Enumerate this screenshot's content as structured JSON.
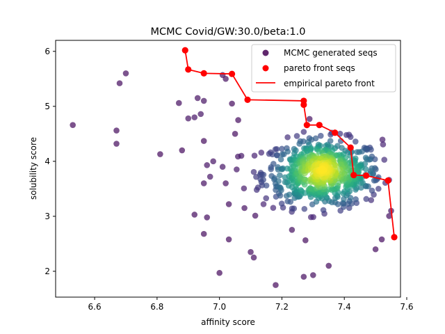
{
  "chart_data": {
    "type": "scatter",
    "title": "MCMC Covid/GW:30.0/beta:1.0",
    "xlabel": "affinity score",
    "ylabel": "solubility score",
    "xlim": [
      6.475,
      7.58
    ],
    "ylim": [
      1.53,
      6.2
    ],
    "xticks": [
      "6.6",
      "6.8",
      "7.0",
      "7.2",
      "7.4",
      "7.6"
    ],
    "yticks": [
      "2",
      "3",
      "4",
      "5",
      "6"
    ],
    "grid": false,
    "legend_position": "top-right",
    "legend": [
      "MCMC generated seqs",
      "pareto front seqs",
      "empirical pareto front"
    ],
    "colors": {
      "pareto": "#ff0000",
      "viridis_low": "#440154",
      "viridis_mid": "#21918c",
      "viridis_high": "#fde725",
      "axis": "#000000"
    },
    "outlier_points": [
      [
        6.53,
        4.66
      ],
      [
        6.67,
        4.56
      ],
      [
        6.67,
        4.32
      ],
      [
        6.68,
        5.42
      ],
      [
        6.7,
        5.6
      ],
      [
        6.81,
        4.13
      ],
      [
        6.87,
        5.06
      ],
      [
        6.88,
        4.2
      ],
      [
        6.9,
        4.78
      ],
      [
        6.92,
        4.8
      ],
      [
        6.93,
        5.15
      ],
      [
        6.94,
        4.86
      ],
      [
        6.95,
        5.1
      ],
      [
        6.95,
        4.37
      ],
      [
        6.96,
        3.93
      ],
      [
        6.95,
        3.6
      ],
      [
        6.97,
        3.72
      ],
      [
        6.98,
        4.0
      ],
      [
        6.92,
        3.03
      ],
      [
        6.96,
        2.98
      ],
      [
        6.95,
        2.68
      ],
      [
        7.0,
        1.97
      ],
      [
        7.01,
        5.57
      ],
      [
        7.02,
        5.5
      ],
      [
        7.01,
        3.9
      ],
      [
        7.02,
        3.6
      ],
      [
        7.03,
        3.22
      ],
      [
        7.03,
        2.58
      ],
      [
        7.04,
        5.05
      ],
      [
        7.06,
        4.75
      ],
      [
        7.05,
        4.5
      ],
      [
        7.07,
        4.1
      ],
      [
        7.08,
        3.15
      ],
      [
        7.1,
        2.35
      ],
      [
        7.11,
        2.25
      ],
      [
        7.18,
        1.75
      ],
      [
        7.27,
        1.9
      ],
      [
        7.3,
        1.93
      ],
      [
        7.35,
        2.1
      ],
      [
        7.5,
        2.4
      ],
      [
        7.52,
        2.58
      ],
      [
        7.55,
        3.1
      ]
    ],
    "cluster": {
      "count": 620,
      "center": [
        7.33,
        3.78
      ],
      "spread_x": 0.095,
      "spread_y": 0.55,
      "x_range": [
        7.05,
        7.55
      ],
      "y_range": [
        2.2,
        5.2
      ]
    },
    "pareto_front_points": [
      [
        6.89,
        6.02
      ],
      [
        6.9,
        5.67
      ],
      [
        6.95,
        5.6
      ],
      [
        7.04,
        5.59
      ],
      [
        7.09,
        5.12
      ],
      [
        7.27,
        5.1
      ],
      [
        7.27,
        5.03
      ],
      [
        7.28,
        4.66
      ],
      [
        7.32,
        4.66
      ],
      [
        7.37,
        4.52
      ],
      [
        7.42,
        4.25
      ],
      [
        7.43,
        3.75
      ],
      [
        7.47,
        3.74
      ],
      [
        7.54,
        3.65
      ],
      [
        7.56,
        2.62
      ]
    ],
    "pareto_front_line": [
      [
        6.89,
        6.02
      ],
      [
        6.9,
        5.67
      ],
      [
        6.95,
        5.6
      ],
      [
        7.04,
        5.59
      ],
      [
        7.09,
        5.12
      ],
      [
        7.27,
        5.1
      ],
      [
        7.27,
        5.03
      ],
      [
        7.28,
        4.66
      ],
      [
        7.32,
        4.66
      ],
      [
        7.37,
        4.52
      ],
      [
        7.42,
        4.25
      ],
      [
        7.43,
        3.75
      ],
      [
        7.47,
        3.74
      ],
      [
        7.54,
        3.65
      ],
      [
        7.56,
        2.62
      ]
    ]
  }
}
